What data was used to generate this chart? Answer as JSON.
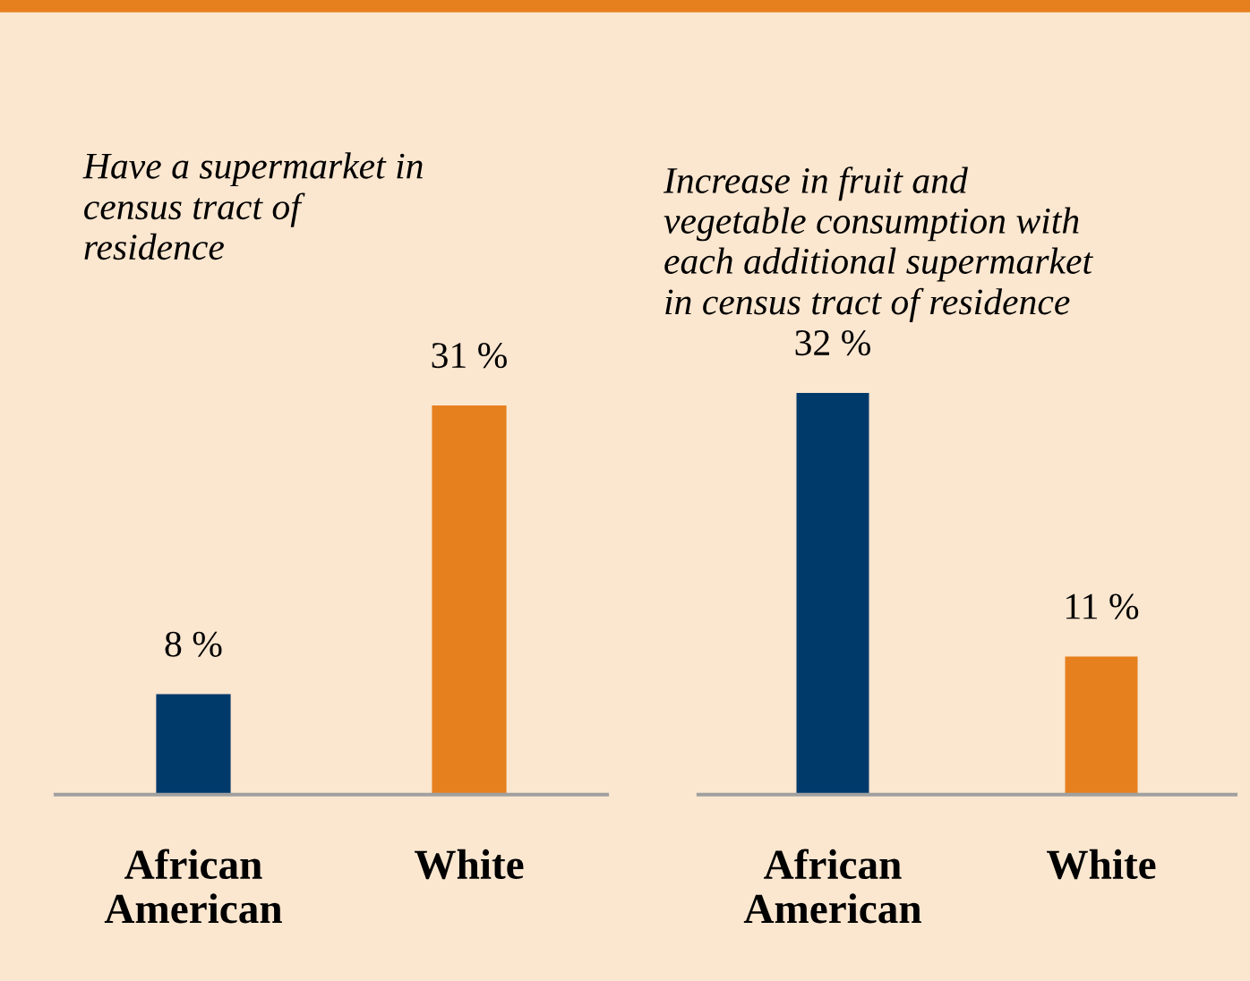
{
  "chart_data": [
    {
      "type": "bar",
      "title": "Have a supermarket in\ncensus tract of\nresidence",
      "categories": [
        "African\nAmerican",
        "White"
      ],
      "values": [
        8,
        31
      ],
      "colors": [
        "#003a6b",
        "#e6801f"
      ],
      "value_labels": [
        "8 %",
        "31 %"
      ],
      "tick_labels": "x",
      "grid": false,
      "legend": false
    },
    {
      "type": "bar",
      "title": "Increase in fruit and\nvegetable consumption with\neach additional supermarket\nin census tract of residence",
      "categories": [
        "African\nAmerican",
        "White"
      ],
      "values": [
        32,
        11
      ],
      "colors": [
        "#003a6b",
        "#e6801f"
      ],
      "value_labels": [
        "32 %",
        "11 %"
      ],
      "tick_labels": "x",
      "grid": false,
      "legend": false
    }
  ]
}
